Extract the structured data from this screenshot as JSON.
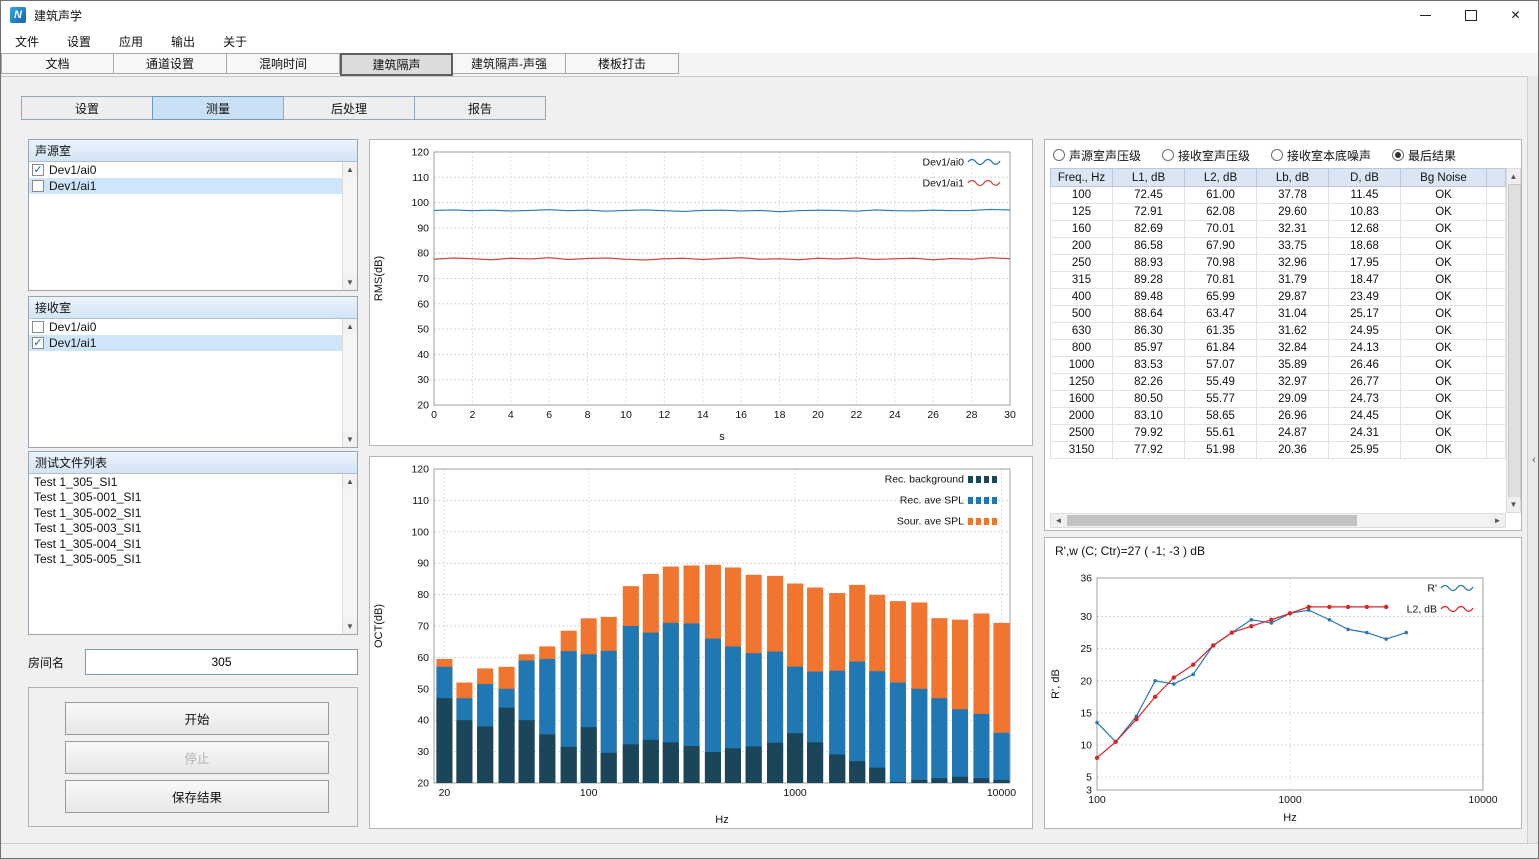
{
  "window": {
    "title": "建筑声学"
  },
  "menu": {
    "items": [
      "文件",
      "设置",
      "应用",
      "输出",
      "关于"
    ]
  },
  "main_tabs": {
    "items": [
      "文档",
      "通道设置",
      "混响时间",
      "建筑隔声",
      "建筑隔声-声强",
      "楼板打击"
    ],
    "active_index": 3
  },
  "sub_tabs": {
    "items": [
      "设置",
      "测量",
      "后处理",
      "报告"
    ],
    "active_index": 1
  },
  "colors": {
    "series_blue": "#2878b5",
    "series_red": "#c94a42",
    "bar_orange": "#f0752f",
    "bar_blue": "#1f77b4",
    "bar_dark": "#1b4558",
    "rating_red": "#d62728",
    "selection": "#cfe5f9"
  },
  "panels": {
    "source_room": {
      "title": "声源室",
      "items": [
        {
          "label": "Dev1/ai0",
          "checked": true,
          "selected": false
        },
        {
          "label": "Dev1/ai1",
          "checked": false,
          "selected": true
        }
      ]
    },
    "receiving_room": {
      "title": "接收室",
      "items": [
        {
          "label": "Dev1/ai0",
          "checked": false,
          "selected": false
        },
        {
          "label": "Dev1/ai1",
          "checked": true,
          "selected": true
        }
      ]
    },
    "test_files": {
      "title": "测试文件列表",
      "items": [
        "Test 1_305_SI1",
        "Test 1_305-001_SI1",
        "Test 1_305-002_SI1",
        "Test 1_305-003_SI1",
        "Test 1_305-004_SI1",
        "Test 1_305-005_SI1"
      ]
    },
    "room_name": {
      "label": "房间名",
      "value": "305"
    },
    "controls": {
      "start": "开始",
      "stop": "停止",
      "save": "保存结果",
      "stop_enabled": false
    }
  },
  "results": {
    "options": [
      "声源室声压级",
      "接收室声压级",
      "接收室本底噪声",
      "最后结果"
    ],
    "selected_index": 3,
    "table": {
      "columns": [
        "Freq., Hz",
        "L1, dB",
        "L2, dB",
        "Lb, dB",
        "D, dB",
        "Bg Noise"
      ],
      "rows": [
        [
          "100",
          "72.45",
          "61.00",
          "37.78",
          "11.45",
          "OK"
        ],
        [
          "125",
          "72.91",
          "62.08",
          "29.60",
          "10.83",
          "OK"
        ],
        [
          "160",
          "82.69",
          "70.01",
          "32.31",
          "12.68",
          "OK"
        ],
        [
          "200",
          "86.58",
          "67.90",
          "33.75",
          "18.68",
          "OK"
        ],
        [
          "250",
          "88.93",
          "70.98",
          "32.96",
          "17.95",
          "OK"
        ],
        [
          "315",
          "89.28",
          "70.81",
          "31.79",
          "18.47",
          "OK"
        ],
        [
          "400",
          "89.48",
          "65.99",
          "29.87",
          "23.49",
          "OK"
        ],
        [
          "500",
          "88.64",
          "63.47",
          "31.04",
          "25.17",
          "OK"
        ],
        [
          "630",
          "86.30",
          "61.35",
          "31.62",
          "24.95",
          "OK"
        ],
        [
          "800",
          "85.97",
          "61.84",
          "32.84",
          "24.13",
          "OK"
        ],
        [
          "1000",
          "83.53",
          "57.07",
          "35.89",
          "26.46",
          "OK"
        ],
        [
          "1250",
          "82.26",
          "55.49",
          "32.97",
          "26.77",
          "OK"
        ],
        [
          "1600",
          "80.50",
          "55.77",
          "29.09",
          "24.73",
          "OK"
        ],
        [
          "2000",
          "83.10",
          "58.65",
          "26.96",
          "24.45",
          "OK"
        ],
        [
          "2500",
          "79.92",
          "55.61",
          "24.87",
          "24.31",
          "OK"
        ],
        [
          "3150",
          "77.92",
          "51.98",
          "20.36",
          "25.95",
          "OK"
        ]
      ]
    },
    "rating_text": "R',w (C; Ctr)=27 ( -1; -3 ) dB"
  },
  "chart_data": [
    {
      "id": "rms",
      "type": "line",
      "title": "",
      "xlabel": "s",
      "ylabel": "RMS(dB)",
      "xlim": [
        0,
        30
      ],
      "ylim": [
        20,
        120
      ],
      "xticks": [
        0,
        2,
        4,
        6,
        8,
        10,
        12,
        14,
        16,
        18,
        20,
        22,
        24,
        26,
        28,
        30
      ],
      "yticks": [
        20,
        30,
        40,
        50,
        60,
        70,
        80,
        90,
        100,
        110,
        120
      ],
      "x": [
        0,
        1,
        2,
        3,
        4,
        5,
        6,
        7,
        8,
        9,
        10,
        11,
        12,
        13,
        14,
        15,
        16,
        17,
        18,
        19,
        20,
        21,
        22,
        23,
        24,
        25,
        26,
        27,
        28,
        29,
        30
      ],
      "series": [
        {
          "name": "Dev1/ai0",
          "color": "#2878b5",
          "values": [
            96.9,
            97.1,
            96.8,
            97.0,
            96.7,
            96.9,
            97.2,
            96.8,
            97.0,
            96.6,
            96.9,
            97.1,
            96.8,
            96.5,
            96.9,
            97.0,
            96.7,
            96.9,
            96.4,
            96.8,
            97.0,
            96.9,
            96.6,
            97.1,
            96.8,
            96.7,
            97.0,
            96.8,
            96.9,
            97.3,
            97.1
          ]
        },
        {
          "name": "Dev1/ai1",
          "color": "#c94a42",
          "values": [
            77.6,
            78.1,
            77.8,
            77.4,
            78.0,
            77.7,
            78.2,
            77.5,
            77.9,
            78.1,
            77.6,
            77.3,
            77.8,
            78.0,
            77.5,
            77.9,
            78.2,
            77.6,
            77.8,
            77.4,
            78.0,
            77.7,
            78.1,
            77.5,
            77.8,
            78.0,
            77.4,
            77.9,
            77.6,
            78.2,
            77.8
          ]
        }
      ],
      "legend": {
        "position": "top-right",
        "items": [
          {
            "label": "Dev1/ai0",
            "color": "#2878b5",
            "icon": "line"
          },
          {
            "label": "Dev1/ai1",
            "color": "#c94a42",
            "icon": "line"
          }
        ]
      }
    },
    {
      "id": "oct",
      "type": "bar",
      "title": "",
      "xlabel": "Hz",
      "ylabel": "OCT(dB)",
      "xscale": "log",
      "xlim": [
        17.8,
        11000
      ],
      "ylim": [
        20,
        120
      ],
      "xticks": [
        20,
        100,
        1000,
        10000
      ],
      "yticks": [
        20,
        30,
        40,
        50,
        60,
        70,
        80,
        90,
        100,
        110,
        120
      ],
      "categories": [
        20,
        25,
        31.5,
        40,
        50,
        63,
        80,
        100,
        125,
        160,
        200,
        250,
        315,
        400,
        500,
        630,
        800,
        1000,
        1250,
        1600,
        2000,
        2500,
        3150,
        4000,
        5000,
        6300,
        8000,
        10000
      ],
      "series": [
        {
          "name": "Sour. ave SPL",
          "color": "#f0752f",
          "values": [
            59.5,
            52,
            56.5,
            57,
            61,
            63.5,
            68.5,
            72.45,
            72.91,
            82.69,
            86.58,
            88.93,
            89.28,
            89.48,
            88.64,
            86.3,
            85.97,
            83.53,
            82.26,
            80.5,
            83.1,
            79.92,
            77.92,
            77.5,
            72.5,
            72,
            74,
            71
          ]
        },
        {
          "name": "Rec. ave SPL",
          "color": "#1f77b4",
          "values": [
            57,
            47,
            51.5,
            50,
            59,
            59.5,
            62,
            61,
            62.08,
            70.01,
            67.9,
            70.98,
            70.81,
            65.99,
            63.47,
            61.35,
            61.84,
            57.07,
            55.49,
            55.77,
            58.65,
            55.61,
            51.98,
            50,
            47,
            43.5,
            42,
            36
          ]
        },
        {
          "name": "Rec. background",
          "color": "#1b4558",
          "values": [
            47,
            40,
            38,
            44,
            40,
            35.5,
            31.5,
            37.78,
            29.6,
            32.31,
            33.75,
            32.96,
            31.79,
            29.87,
            31.04,
            31.62,
            32.84,
            35.89,
            32.97,
            29.09,
            26.96,
            24.87,
            20.36,
            21,
            21.5,
            22,
            21.5,
            21
          ]
        }
      ],
      "legend": {
        "position": "top-right",
        "items": [
          {
            "label": "Rec. background",
            "color": "#1b4558",
            "icon": "bar"
          },
          {
            "label": "Rec. ave SPL",
            "color": "#1f77b4",
            "icon": "bar"
          },
          {
            "label": "Sour. ave SPL",
            "color": "#f0752f",
            "icon": "bar"
          }
        ]
      }
    },
    {
      "id": "rating",
      "type": "line",
      "title": "R',w (C; Ctr)=27 ( -1; -3 ) dB",
      "xlabel": "Hz",
      "ylabel": "R', dB",
      "xscale": "log",
      "xlim": [
        100,
        10000
      ],
      "ylim": [
        3,
        36
      ],
      "xticks": [
        100,
        1000,
        10000
      ],
      "yticks": [
        3,
        5,
        10,
        15,
        20,
        25,
        30,
        36
      ],
      "series": [
        {
          "name": "R'",
          "color": "#2878b5",
          "marker": true,
          "marker_r": 1.8,
          "x": [
            100,
            125,
            160,
            200,
            250,
            315,
            400,
            500,
            630,
            800,
            1000,
            1250,
            1600,
            2000,
            2500,
            3150,
            4000
          ],
          "values": [
            13.5,
            10.5,
            14.5,
            20,
            19.5,
            21,
            25.5,
            27.5,
            29.5,
            29,
            30.5,
            31,
            29.5,
            28,
            27.5,
            26.5,
            27.5
          ]
        },
        {
          "name": "L2, dB",
          "color": "#d62728",
          "marker": true,
          "marker_r": 2.2,
          "x": [
            100,
            125,
            160,
            200,
            250,
            315,
            400,
            500,
            630,
            800,
            1000,
            1250,
            1600,
            2000,
            2500,
            3150
          ],
          "values": [
            8,
            10.5,
            14,
            17.5,
            20.5,
            22.5,
            25.5,
            27.5,
            28.5,
            29.5,
            30.5,
            31.5,
            31.5,
            31.5,
            31.5,
            31.5
          ]
        }
      ],
      "legend": {
        "position": "top-right",
        "items": [
          {
            "label": "R'",
            "color": "#2878b5",
            "icon": "line"
          },
          {
            "label": "L2, dB",
            "color": "#d62728",
            "icon": "line"
          }
        ]
      }
    }
  ]
}
